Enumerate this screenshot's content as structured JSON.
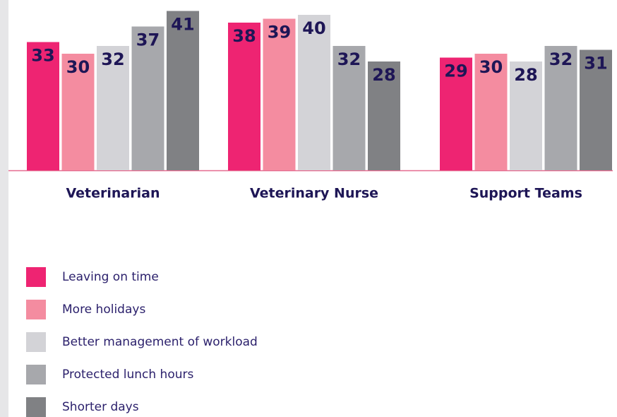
{
  "chart_data": {
    "type": "bar",
    "categories": [
      "Veterinarian",
      "Veterinary Nurse",
      "Support Teams"
    ],
    "series": [
      {
        "name": "Leaving on time",
        "color": "#ee2472",
        "values": [
          33,
          38,
          29
        ]
      },
      {
        "name": "More holidays",
        "color": "#f48ca0",
        "values": [
          30,
          39,
          30
        ]
      },
      {
        "name": "Better management of workload",
        "color": "#d3d3d7",
        "values": [
          32,
          40,
          28
        ]
      },
      {
        "name": "Protected lunch hours",
        "color": "#a7a8ac",
        "values": [
          37,
          32,
          32
        ]
      },
      {
        "name": "Shorter days",
        "color": "#808184",
        "values": [
          41,
          28,
          31
        ]
      }
    ],
    "ylim": [
      0,
      42
    ]
  }
}
